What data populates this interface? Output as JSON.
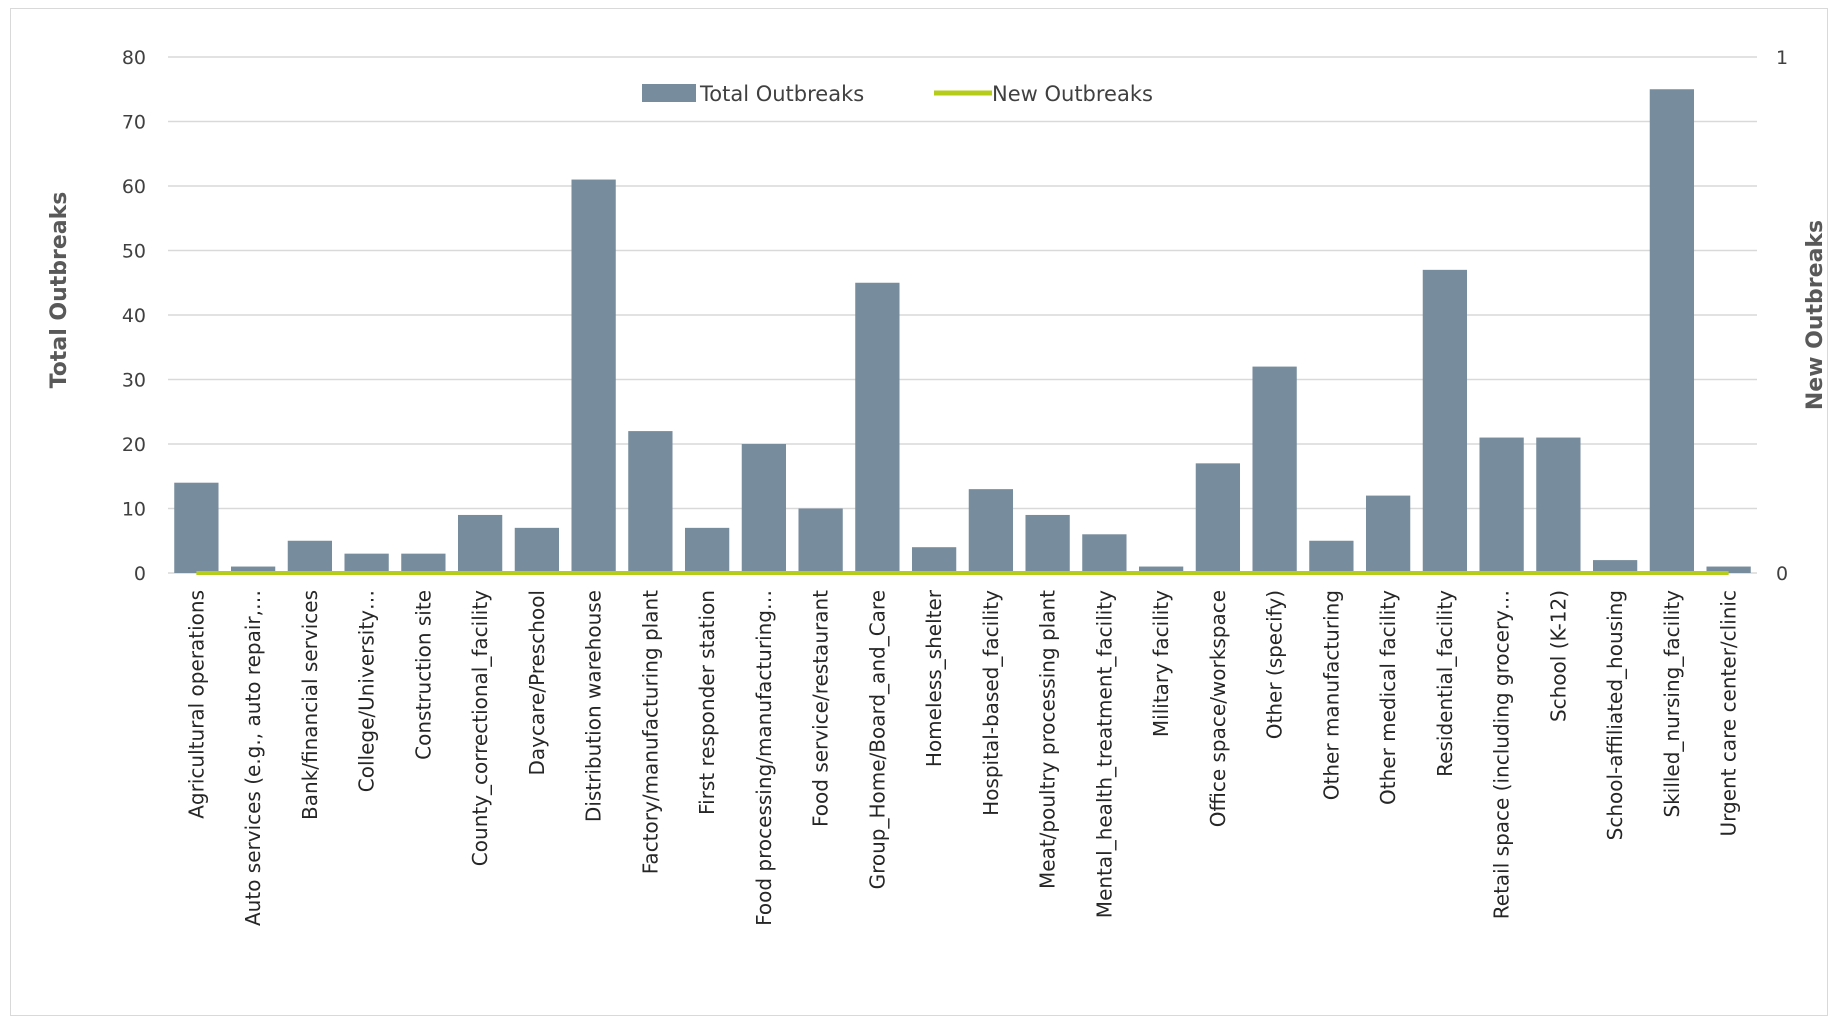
{
  "chart_data": {
    "type": "bar",
    "title": "",
    "categories": [
      "Agricultural operations",
      "Auto services (e.g., auto repair,…",
      "Bank/financial services",
      "College/University…",
      "Construction site",
      "County_correctional_facility",
      "Daycare/Preschool",
      "Distribution warehouse",
      "Factory/manufacturing plant",
      "First responder station",
      "Food processing/manufacturing…",
      "Food service/restaurant",
      "Group_Home/Board_and_Care",
      "Homeless_shelter",
      "Hospital-based_facility",
      "Meat/poultry processing plant",
      "Mental_health_treatment_facility",
      "Military facility",
      "Office space/workspace",
      "Other (specify)",
      "Other manufacturing",
      "Other medical facility",
      "Residential_facility",
      "Retail space (including grocery…",
      "School (K-12)",
      "School-affiliated_housing",
      "Skilled_nursing_facility",
      "Urgent care center/clinic"
    ],
    "series": [
      {
        "name": "Total Outbreaks",
        "type": "bar",
        "axis": "left",
        "color": "#778c9c",
        "values": [
          14,
          1,
          5,
          3,
          3,
          9,
          7,
          61,
          22,
          7,
          20,
          10,
          45,
          4,
          13,
          9,
          6,
          1,
          17,
          32,
          5,
          12,
          47,
          21,
          21,
          2,
          75,
          1
        ]
      },
      {
        "name": "New Outbreaks",
        "type": "line",
        "axis": "right",
        "color": "#b5cc18",
        "values": [
          0,
          0,
          0,
          0,
          0,
          0,
          0,
          0,
          0,
          0,
          0,
          0,
          0,
          0,
          0,
          0,
          0,
          0,
          0,
          0,
          0,
          0,
          0,
          0,
          0,
          0,
          0,
          0
        ]
      }
    ],
    "ylabel": "Total Outbreaks",
    "ylabel_right": "New Outbreaks",
    "ylim": [
      0,
      80
    ],
    "yticks": [
      0,
      10,
      20,
      30,
      40,
      50,
      60,
      70,
      80
    ],
    "ylim_right": [
      0,
      1
    ],
    "yticks_right": [
      0,
      1
    ],
    "grid": true,
    "legend_position": "top-center"
  }
}
